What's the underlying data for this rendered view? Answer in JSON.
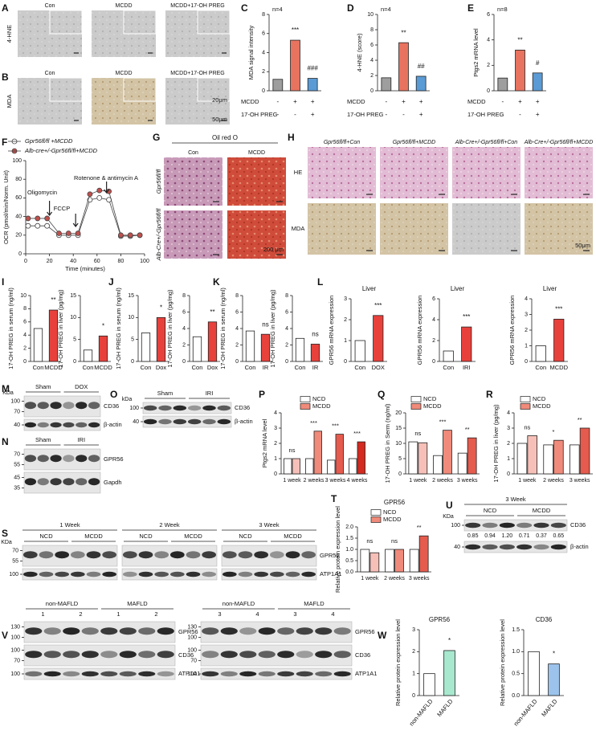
{
  "panels": [
    {
      "letter": "A",
      "type": "image-grid",
      "rows": [
        "4-HNE"
      ],
      "columns": [
        "Con",
        "MCDD",
        "MCDD+17-OH PREG"
      ]
    },
    {
      "letter": "B",
      "type": "image-grid",
      "rows": [
        "MDA"
      ],
      "columns": [
        "Con",
        "MCDD",
        "MCDD+17-OH PREG"
      ],
      "scale_labels": [
        "20μm",
        "50μm"
      ]
    },
    {
      "letter": "C",
      "type": "bar",
      "n_label": "n=4",
      "ylabel": "MDA signal intensity",
      "ylim": [
        0,
        8
      ],
      "yticks": [
        0,
        2,
        4,
        6,
        8
      ],
      "values": [
        1.2,
        5.3,
        1.3
      ],
      "colors": [
        "#9e9e9e",
        "#e8735f",
        "#5b9bd5"
      ],
      "significance": [
        null,
        "***",
        "###"
      ],
      "sign_rows": [
        {
          "label": "MCDD",
          "signs": [
            "-",
            "+",
            "+"
          ]
        },
        {
          "label": "17-OH PREG",
          "signs": [
            "-",
            "-",
            "+"
          ]
        }
      ]
    },
    {
      "letter": "D",
      "type": "bar",
      "n_label": "n=4",
      "ylabel": "4-HNE (score)",
      "ylim": [
        0,
        10
      ],
      "yticks": [
        0,
        2,
        4,
        6,
        8,
        10
      ],
      "values": [
        1.7,
        6.3,
        1.9
      ],
      "colors": [
        "#9e9e9e",
        "#e8735f",
        "#5b9bd5"
      ],
      "significance": [
        null,
        "**",
        "##"
      ],
      "sign_rows": [
        {
          "label": "MCDD",
          "signs": [
            "-",
            "+",
            "+"
          ]
        },
        {
          "label": "17-OH PREG",
          "signs": [
            "-",
            "-",
            "+"
          ]
        }
      ]
    },
    {
      "letter": "E",
      "type": "bar",
      "n_label": "n=8",
      "ylabel": "Ptgs2 mRNA level",
      "ylim": [
        0,
        6
      ],
      "yticks": [
        0,
        2,
        4,
        6
      ],
      "values": [
        1.0,
        3.2,
        1.4
      ],
      "colors": [
        "#9e9e9e",
        "#e8735f",
        "#5b9bd5"
      ],
      "significance": [
        null,
        "**",
        "#"
      ],
      "sign_rows": [
        {
          "label": "MCDD",
          "signs": [
            "-",
            "+",
            "+"
          ]
        },
        {
          "label": "17-OH PREG",
          "signs": [
            "-",
            "-",
            "+"
          ]
        }
      ]
    },
    {
      "letter": "F",
      "type": "line",
      "xlabel": "Time (minutes)",
      "ylabel": "OCR (pmol/min/Norm. Unit)",
      "xlim": [
        0,
        100
      ],
      "ylim": [
        0,
        100
      ],
      "xticks": [
        0,
        20,
        40,
        60,
        80,
        100
      ],
      "yticks": [
        0,
        20,
        40,
        60,
        80,
        100
      ],
      "x": [
        2,
        10,
        18,
        28,
        36,
        44,
        54,
        62,
        70,
        80,
        88,
        96
      ],
      "series": [
        {
          "name": "Gpr56fl/fl +MCDD",
          "color": "#ffffff",
          "values": [
            30,
            30,
            30,
            20,
            20,
            20,
            58,
            60,
            58,
            19,
            19,
            20
          ]
        },
        {
          "name": "Alb-cre+/-Gpr56fl/fl+MCDD",
          "color": "#c0504d",
          "values": [
            38,
            38,
            38,
            22,
            22,
            22,
            64,
            68,
            67,
            20,
            20,
            20
          ]
        }
      ],
      "annotations": [
        "Oligomycin",
        "FCCP",
        "Rotenone & antimycin A"
      ]
    },
    {
      "letter": "G",
      "type": "image-grid",
      "title": "Oil red O",
      "columns": [
        "Con",
        "MCDD"
      ],
      "rows": [
        "Gpr56fl/fl",
        "Alb-Cre+/-Gpr56fl/fl"
      ],
      "scale_labels": [
        "200 μm"
      ]
    },
    {
      "letter": "H",
      "type": "image-grid",
      "columns": [
        "Gpr56fl/fl+Con",
        "Gpr56fl/fl+MCDD",
        "Alb-Cre+/-Gpr56fl/fl+Con",
        "Alb-Cre+/-Gpr56fl/fl+MCDD"
      ],
      "rows": [
        "HE",
        "MDA"
      ],
      "scale_labels": [
        "50μm"
      ]
    },
    {
      "letter": "I",
      "type": "bar",
      "ylabel": "17-OH PREG in serum (ng/ml)",
      "ylim": [
        0,
        10
      ],
      "yticks": [
        0,
        2,
        4,
        6,
        8,
        10
      ],
      "categories": [
        "Con",
        "MCDD"
      ],
      "values": [
        5.0,
        7.8
      ],
      "colors": [
        "#ffffff",
        "#e8413c"
      ],
      "significance": [
        null,
        "**"
      ]
    },
    {
      "type": "bar",
      "ylabel": "17-OH PREG in liver (pg/mg)",
      "ylim": [
        0,
        15
      ],
      "yticks": [
        0,
        5,
        10,
        15
      ],
      "categories": [
        "Con",
        "MCDD"
      ],
      "values": [
        2.6,
        5.8
      ],
      "colors": [
        "#ffffff",
        "#e8413c"
      ],
      "significance": [
        null,
        "*"
      ]
    },
    {
      "letter": "J",
      "type": "bar",
      "ylabel": "17-OH PREG in serum (ng/ml)",
      "ylim": [
        0,
        15
      ],
      "yticks": [
        0,
        5,
        10,
        15
      ],
      "categories": [
        "Con",
        "Dox"
      ],
      "values": [
        6.5,
        10.0
      ],
      "colors": [
        "#ffffff",
        "#e8413c"
      ],
      "significance": [
        null,
        "*"
      ]
    },
    {
      "type": "bar",
      "ylabel": "17-OH PREG in liver (pg/mg)",
      "ylim": [
        0,
        8
      ],
      "yticks": [
        0,
        2,
        4,
        6,
        8
      ],
      "categories": [
        "Con",
        "Dox"
      ],
      "values": [
        3.0,
        4.8
      ],
      "colors": [
        "#ffffff",
        "#e8413c"
      ],
      "significance": [
        null,
        "**"
      ]
    },
    {
      "letter": "K",
      "type": "bar",
      "ylabel": "17-OH PREG in serum (ng/ml)",
      "ylim": [
        0,
        8
      ],
      "yticks": [
        0,
        2,
        4,
        6,
        8
      ],
      "categories": [
        "Con",
        "IR"
      ],
      "values": [
        3.7,
        3.3
      ],
      "colors": [
        "#ffffff",
        "#e8413c"
      ],
      "significance": [
        null,
        "ns"
      ]
    },
    {
      "type": "bar",
      "ylabel": "17-OH PREG in liver (pg/mg)",
      "ylim": [
        0,
        8
      ],
      "yticks": [
        0,
        2,
        4,
        6,
        8
      ],
      "categories": [
        "Con",
        "IR"
      ],
      "values": [
        2.8,
        2.1
      ],
      "colors": [
        "#ffffff",
        "#e8413c"
      ],
      "significance": [
        null,
        "ns"
      ]
    },
    {
      "letter": "L",
      "type": "bar",
      "title": "Liver",
      "ylabel": "GPR56 mRNA expression",
      "ylim": [
        0,
        3
      ],
      "yticks": [
        0,
        1,
        2,
        3
      ],
      "categories": [
        "Con",
        "DOX"
      ],
      "values": [
        1.0,
        2.2
      ],
      "colors": [
        "#ffffff",
        "#e8413c"
      ],
      "significance": [
        null,
        "***"
      ]
    },
    {
      "type": "bar",
      "title": "Liver",
      "ylabel": "GPR56 mRNA expression",
      "ylim": [
        0,
        6
      ],
      "yticks": [
        0,
        2,
        4,
        6
      ],
      "categories": [
        "Con",
        "IRI"
      ],
      "values": [
        1.0,
        3.3
      ],
      "colors": [
        "#ffffff",
        "#e8413c"
      ],
      "significance": [
        null,
        "***"
      ]
    },
    {
      "type": "bar",
      "title": "Liver",
      "ylabel": "GPR56 mRNA expression",
      "ylim": [
        0,
        4
      ],
      "yticks": [
        0,
        1,
        2,
        3,
        4
      ],
      "categories": [
        "Con",
        "MCDD"
      ],
      "values": [
        1.0,
        2.7
      ],
      "colors": [
        "#ffffff",
        "#e8413c"
      ],
      "significance": [
        null,
        "***"
      ]
    },
    {
      "letter": "M",
      "type": "blot",
      "unit": "KDa",
      "sections": [
        {
          "groups": [
            {
              "name": "Sham"
            },
            {
              "name": "DOX"
            }
          ],
          "rows": [
            {
              "label": "CD36",
              "markers": [
                100,
                70
              ]
            },
            {
              "label": "β-actin",
              "markers": [
                40
              ]
            }
          ]
        }
      ]
    },
    {
      "letter": "N",
      "type": "blot",
      "sections": [
        {
          "groups": [
            {
              "name": "Sham"
            },
            {
              "name": "IRI"
            }
          ],
          "rows": [
            {
              "label": "GPR56",
              "markers": [
                70,
                55
              ]
            },
            {
              "label": "Gapdh",
              "markers": [
                45,
                35
              ]
            }
          ]
        }
      ]
    },
    {
      "letter": "O",
      "type": "blot",
      "unit": "kDa",
      "sections": [
        {
          "groups": [
            {
              "name": "Sham"
            },
            {
              "name": "IRI"
            }
          ],
          "rows": [
            {
              "label": "CD36",
              "markers": [
                100
              ]
            },
            {
              "label": "β-actin",
              "markers": [
                40
              ]
            }
          ]
        }
      ]
    },
    {
      "letter": "P",
      "type": "grouped-bar",
      "ylabel": "Ptgs2 mRNA level",
      "ylim": [
        0,
        4
      ],
      "yticks": [
        0,
        1,
        2,
        3,
        4
      ],
      "categories": [
        "1 week",
        "2 weeks",
        "3 weeks",
        "4 weeks"
      ],
      "series": [
        {
          "name": "NCD",
          "color": "#ffffff",
          "values": [
            1.0,
            1.0,
            0.9,
            1.0
          ]
        },
        {
          "name": "MCDD",
          "color": "#f08a7a",
          "colors": [
            "#f6c0b8",
            "#f08a7a",
            "#e55b4d",
            "#d42a20"
          ],
          "values": [
            1.0,
            2.8,
            2.6,
            2.1
          ]
        }
      ],
      "significance": [
        "ns",
        "***",
        "***",
        "***"
      ]
    },
    {
      "letter": "Q",
      "type": "grouped-bar",
      "ylabel": "17-OH PREG in Serm (ng/ml)",
      "ylim": [
        0,
        20
      ],
      "yticks": [
        0,
        5,
        10,
        15,
        20
      ],
      "categories": [
        "1 week",
        "2 weeks",
        "3 weeks"
      ],
      "series": [
        {
          "name": "NCD",
          "color": "#ffffff",
          "values": [
            10.5,
            6.0,
            6.8
          ]
        },
        {
          "name": "MCDD",
          "color": "#f08a7a",
          "colors": [
            "#f6c0b8",
            "#f08a7a",
            "#e55b4d"
          ],
          "values": [
            10.2,
            14.3,
            11.8
          ]
        }
      ],
      "significance": [
        "ns",
        "***",
        "**"
      ]
    },
    {
      "letter": "R",
      "type": "grouped-bar",
      "ylabel": "17-OH PREG in liver (pg/mg)",
      "ylim": [
        0,
        4
      ],
      "yticks": [
        0,
        1,
        2,
        3,
        4
      ],
      "categories": [
        "1 week",
        "2 weeks",
        "3 weeks"
      ],
      "series": [
        {
          "name": "NCD",
          "color": "#ffffff",
          "values": [
            2.0,
            1.9,
            1.9
          ]
        },
        {
          "name": "MCDD",
          "color": "#f08a7a",
          "colors": [
            "#f6c0b8",
            "#f08a7a",
            "#e55b4d"
          ],
          "values": [
            2.5,
            2.2,
            3.0
          ]
        }
      ],
      "significance": [
        "ns",
        "*",
        "**"
      ]
    },
    {
      "letter": "S",
      "type": "blot",
      "unit": "KDa",
      "rows": [
        {
          "label": "GPR56",
          "markers": [
            70,
            55
          ]
        },
        {
          "label": "ATP1A1",
          "markers": [
            100
          ]
        }
      ],
      "sections": [
        {
          "title": "1 Week",
          "groups": [
            {
              "name": "NCD"
            },
            {
              "name": "MCDD"
            }
          ]
        },
        {
          "title": "2 Week",
          "groups": [
            {
              "name": "NCD"
            },
            {
              "name": "MCDD"
            }
          ]
        },
        {
          "title": "3 Week",
          "groups": [
            {
              "name": "NCD"
            },
            {
              "name": "MCDD"
            }
          ]
        }
      ]
    },
    {
      "letter": "T",
      "type": "grouped-bar",
      "title": "GPR56",
      "ylabel": "Relative protein expression level",
      "ylim": [
        0,
        2
      ],
      "yticks": [
        {
          "value": 0,
          "label": "0.0"
        },
        0.5,
        {
          "value": 1,
          "label": "1.0"
        },
        1.5,
        {
          "value": 2,
          "label": "2.0"
        }
      ],
      "categories": [
        "1 week",
        "2 weeks",
        "3 weeks"
      ],
      "series": [
        {
          "name": "NCD",
          "color": "#ffffff",
          "values": [
            1.0,
            1.0,
            1.0
          ]
        },
        {
          "name": "MCDD",
          "color": "#f08a7a",
          "colors": [
            "#f6c0b8",
            "#f08a7a",
            "#e55b4d"
          ],
          "values": [
            0.85,
            1.0,
            1.6
          ]
        }
      ],
      "significance": [
        "ns",
        "ns",
        "**"
      ]
    },
    {
      "letter": "U",
      "type": "blot",
      "unit": "KDa",
      "sections": [
        {
          "title": "3 Week",
          "groups": [
            {
              "name": "NCD"
            },
            {
              "name": "MCDD"
            }
          ],
          "rows": [
            {
              "label": "CD36",
              "markers": [
                100
              ],
              "values": [
                "0.85",
                "0.94",
                "1.20",
                "0.71",
                "0.37",
                "0.65"
              ]
            },
            {
              "label": "β-actin",
              "markers": [
                40
              ]
            }
          ]
        }
      ]
    },
    {
      "letter": "V",
      "type": "blot",
      "sections": [
        {
          "groups": [
            {
              "name": "non-MAFLD",
              "lanes": [
                "1",
                "2"
              ]
            },
            {
              "name": "MAFLD",
              "lanes": [
                "1",
                "2"
              ]
            }
          ],
          "rows": [
            {
              "label": "GPR56",
              "markers": [
                130,
                100
              ]
            },
            {
              "label": "CD36",
              "markers": [
                100,
                70
              ]
            },
            {
              "label": "ATP1A1",
              "markers": [
                100
              ]
            }
          ]
        },
        {
          "groups": [
            {
              "name": "non-MAFLD",
              "lanes": [
                "3",
                "4"
              ]
            },
            {
              "name": "MAFLD",
              "lanes": [
                "3",
                "4"
              ]
            }
          ],
          "rows": [
            {
              "label": "GPR56",
              "markers": [
                130,
                100
              ]
            },
            {
              "label": "CD36",
              "markers": [
                100,
                70
              ]
            },
            {
              "label": "ATP1A1",
              "markers": [
                100
              ]
            }
          ]
        }
      ]
    },
    {
      "letter": "W",
      "type": "bar",
      "title": "GPR56",
      "ylabel": "Relative protein expression level",
      "ylim": [
        0,
        3
      ],
      "yticks": [
        0,
        1,
        2,
        3
      ],
      "categories": [
        "non-MAFLD",
        "MAFLD"
      ],
      "values": [
        1.0,
        2.05
      ],
      "colors": [
        "#ffffff",
        "#a8e8cf"
      ],
      "significance": [
        null,
        "*"
      ]
    },
    {
      "type": "bar",
      "title": "CD36",
      "ylabel": "Relative protein expression level",
      "ylim": [
        0,
        1.5
      ],
      "yticks": [
        {
          "value": 0,
          "label": "0.0"
        },
        0.5,
        {
          "value": 1,
          "label": "1.0"
        },
        1.5
      ],
      "categories": [
        "non-MAFLD",
        "MAFLD"
      ],
      "values": [
        1.0,
        0.72
      ],
      "colors": [
        "#ffffff",
        "#9cc3ec"
      ],
      "significance": [
        null,
        "*"
      ]
    }
  ]
}
